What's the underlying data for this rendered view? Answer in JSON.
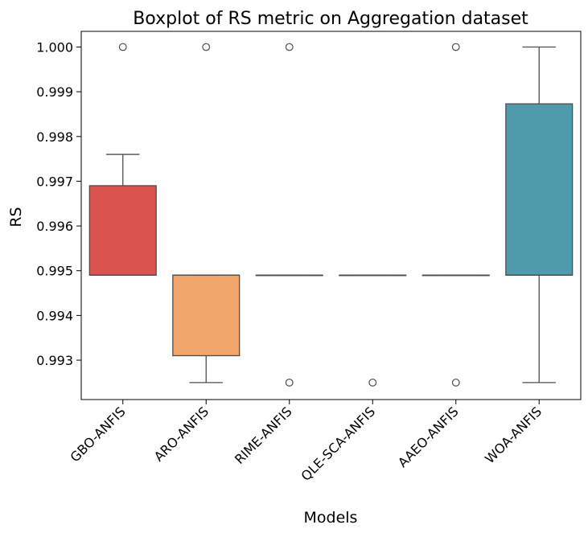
{
  "chart_data": {
    "type": "boxplot",
    "title": "Boxplot of RS metric on Aggregation dataset",
    "xlabel": "Models",
    "ylabel": "RS",
    "ylim": [
      0.99212,
      1.00035
    ],
    "yticks": [
      0.993,
      0.994,
      0.995,
      0.996,
      0.997,
      0.998,
      0.999,
      1.0
    ],
    "ytick_labels": [
      "0.993",
      "0.994",
      "0.995",
      "0.996",
      "0.997",
      "0.998",
      "0.999",
      "1.000"
    ],
    "grid": false,
    "legend": "none",
    "categories": [
      "GBO-ANFIS",
      "ARO-ANFIS",
      "RIME-ANFIS",
      "QLE-SCA-ANFIS",
      "AAEO-ANFIS",
      "WOA-ANFIS"
    ],
    "boxes": [
      {
        "label": "GBO-ANFIS",
        "whisker_low": 0.9949,
        "q1": 0.9949,
        "median": 0.9949,
        "q3": 0.9969,
        "whisker_high": 0.9976,
        "outliers": [
          1.0
        ],
        "color": "#d9534f"
      },
      {
        "label": "ARO-ANFIS",
        "whisker_low": 0.9925,
        "q1": 0.9931,
        "median": 0.9949,
        "q3": 0.9949,
        "whisker_high": 0.9949,
        "outliers": [
          1.0
        ],
        "color": "#f0a56a"
      },
      {
        "label": "RIME-ANFIS",
        "whisker_low": 0.9949,
        "q1": 0.9949,
        "median": 0.9949,
        "q3": 0.9949,
        "whisker_high": 0.9949,
        "outliers": [
          1.0,
          0.9925
        ],
        "color": "#c9c9c9"
      },
      {
        "label": "QLE-SCA-ANFIS",
        "whisker_low": 0.9949,
        "q1": 0.9949,
        "median": 0.9949,
        "q3": 0.9949,
        "whisker_high": 0.9949,
        "outliers": [
          0.9925
        ],
        "color": "#c9c9c9"
      },
      {
        "label": "AAEO-ANFIS",
        "whisker_low": 0.9949,
        "q1": 0.9949,
        "median": 0.9949,
        "q3": 0.9949,
        "whisker_high": 0.9949,
        "outliers": [
          1.0,
          0.9925
        ],
        "color": "#c9c9c9"
      },
      {
        "label": "WOA-ANFIS",
        "whisker_low": 0.9925,
        "q1": 0.9949,
        "median": 0.9949,
        "q3": 0.99873,
        "whisker_high": 1.0,
        "outliers": [],
        "color": "#4f9aab"
      }
    ]
  }
}
